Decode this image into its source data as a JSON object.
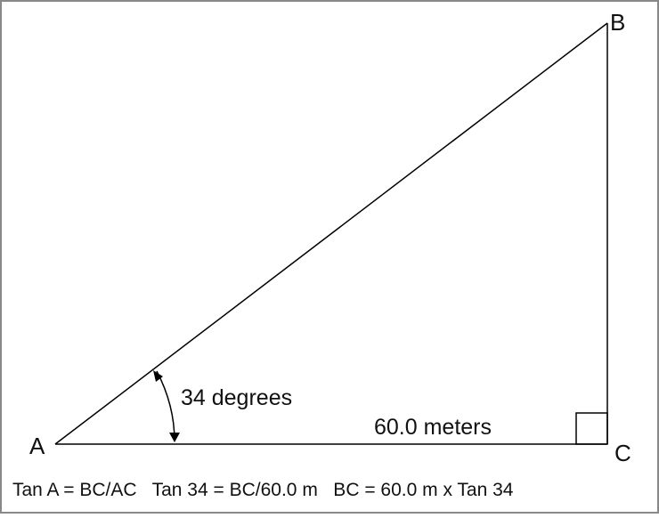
{
  "diagram": {
    "vertices": {
      "a": "A",
      "b": "B",
      "c": "C"
    },
    "angle_label": "34 degrees",
    "base_label": "60.0 meters",
    "formula": "Tan A = BC/AC   Tan 34 = BC/60.0 m   BC = 60.0 m x Tan 34",
    "colors": {
      "line": "#000000",
      "border": "#888888",
      "background": "#ffffff"
    }
  }
}
